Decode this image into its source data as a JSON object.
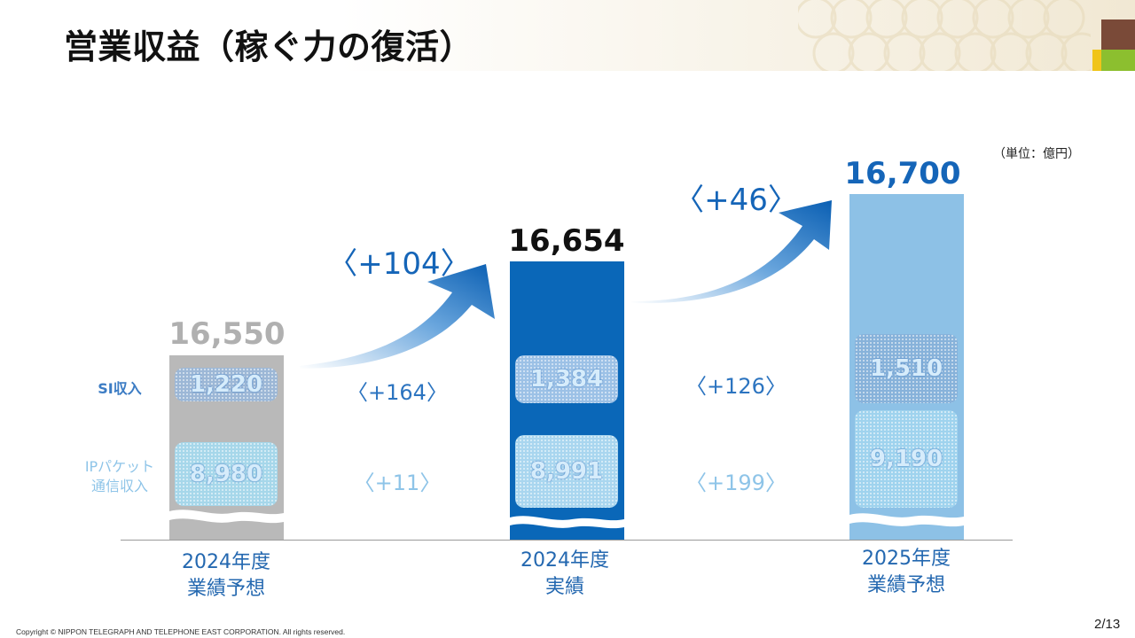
{
  "title": "営業収益（稼ぐ力の復活）",
  "unit": "（単位：億円）",
  "row_labels": {
    "si": "SI収入",
    "ip_line1": "IPパケット",
    "ip_line2": "通信収入"
  },
  "colors": {
    "forecast_2024": "#b9b9b9",
    "actual_2024": "#0a67b8",
    "forecast_2025": "#8dc1e6",
    "accent": "#1565b8"
  },
  "bars": [
    {
      "cat_line1": "2024年度",
      "cat_line2": "業績予想",
      "total": "16,550",
      "si": "1,220",
      "ip": "8,980"
    },
    {
      "cat_line1": "2024年度",
      "cat_line2": "実績",
      "total": "16,654",
      "si": "1,384",
      "ip": "8,991"
    },
    {
      "cat_line1": "2025年度",
      "cat_line2": "業績予想",
      "total": "16,700",
      "si": "1,510",
      "ip": "9,190"
    }
  ],
  "deltas": [
    {
      "total": "〈+104〉",
      "si": "〈+164〉",
      "ip": "〈+11〉"
    },
    {
      "total": "〈+46〉",
      "si": "〈+126〉",
      "ip": "〈+199〉"
    }
  ],
  "chart_data": {
    "type": "bar",
    "title": "営業収益（稼ぐ力の復活）",
    "categories": [
      "2024年度 業績予想",
      "2024年度 実績",
      "2025年度 業績予想"
    ],
    "series": [
      {
        "name": "営業収益",
        "values": [
          16550,
          16654,
          16700
        ]
      },
      {
        "name": "SI収入",
        "values": [
          1220,
          1384,
          1510
        ]
      },
      {
        "name": "IPパケット通信収入",
        "values": [
          8980,
          8991,
          9190
        ]
      }
    ],
    "deltas": {
      "営業収益": [
        104,
        46
      ],
      "SI収入": [
        164,
        126
      ],
      "IPパケット通信収入": [
        11,
        199
      ]
    },
    "ylabel": "（単位：億円）"
  },
  "footer": {
    "copyright": "Copyright © NIPPON TELEGRAPH AND TELEPHONE EAST CORPORATION. All rights reserved.",
    "page": "2/13"
  }
}
